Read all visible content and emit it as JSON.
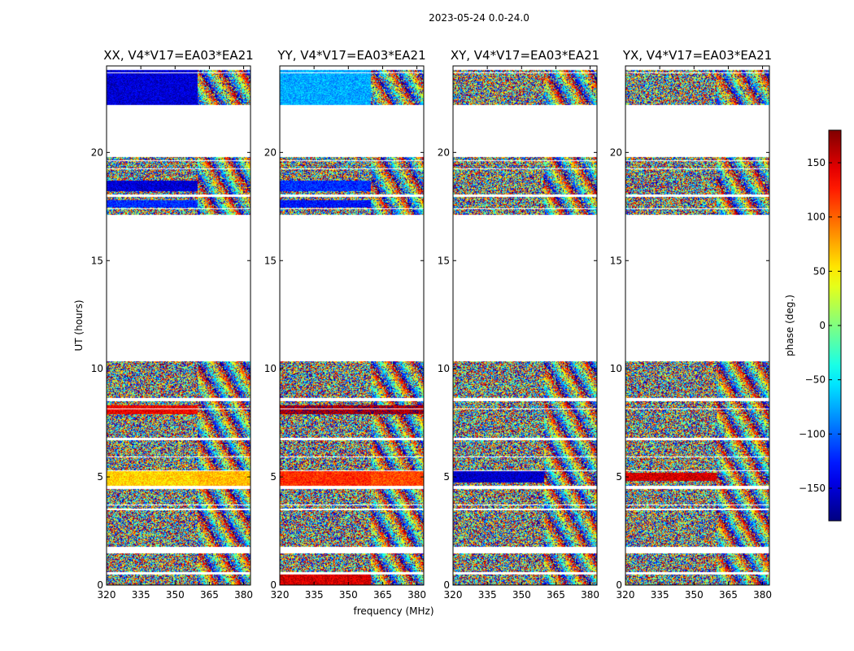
{
  "figure": {
    "suptitle": "2023-05-24 0.0-24.0"
  },
  "chart_data": {
    "type": "heatmap",
    "xlabel": "frequency (MHz)",
    "ylabel": "UT (hours)",
    "xlim": [
      320,
      383
    ],
    "ylim": [
      0,
      24
    ],
    "xticks": [
      320,
      335,
      350,
      365,
      380
    ],
    "yticks": [
      0,
      5,
      10,
      15,
      20
    ],
    "panels": [
      {
        "title": "XX, V4*V17=EA03*EA21",
        "mode": "xx"
      },
      {
        "title": "YY, V4*V17=EA03*EA21",
        "mode": "yy"
      },
      {
        "title": "XY, V4*V17=EA03*EA21",
        "mode": "xy"
      },
      {
        "title": "YX, V4*V17=EA03*EA21",
        "mode": "yx"
      }
    ],
    "data_ranges_ut_hours": [
      [
        0.0,
        0.5
      ],
      [
        0.6,
        1.5
      ],
      [
        1.75,
        3.45
      ],
      [
        3.55,
        4.45
      ],
      [
        4.6,
        5.25
      ],
      [
        5.3,
        6.7
      ],
      [
        6.8,
        8.5
      ],
      [
        8.65,
        10.35
      ],
      [
        17.1,
        17.95
      ],
      [
        18.05,
        19.8
      ],
      [
        22.2,
        23.8
      ]
    ],
    "frequency_split_mhz": 360,
    "colorbar": {
      "label": "phase (deg.)",
      "min": -180,
      "max": 180,
      "ticks": [
        -150,
        -100,
        -50,
        0,
        50,
        100,
        150
      ],
      "tick_labels": [
        "−150",
        "−100",
        "−50",
        "0",
        "50",
        "100",
        "150"
      ],
      "colormap": "jet"
    }
  }
}
